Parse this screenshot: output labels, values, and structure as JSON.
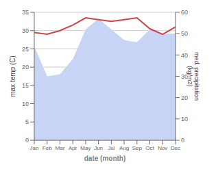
{
  "chart_data": {
    "type": "line",
    "categories": [
      "Jan",
      "Feb",
      "Mar",
      "Apr",
      "May",
      "Jun",
      "Jul",
      "Aug",
      "Sep",
      "Oct",
      "Nov",
      "Dec"
    ],
    "series": [
      {
        "type": "area",
        "axis": "y2",
        "color": "#c8d4f5",
        "values": [
          44,
          30,
          31,
          38,
          52,
          57,
          52,
          47,
          46,
          52,
          50,
          50
        ]
      },
      {
        "type": "line",
        "color": "#cc4444",
        "values": [
          29.5,
          29.0,
          30.0,
          31.5,
          33.5,
          33.0,
          32.5,
          33.0,
          33.5,
          30.5,
          29.0,
          31.0
        ]
      }
    ],
    "xlabel": "date (month)",
    "ylabel": "max temp (C)",
    "y2label": "med. precipitation\n(kg/m2)",
    "ylim": [
      0,
      35
    ],
    "yticks": [
      0,
      5,
      10,
      15,
      20,
      25,
      30,
      35
    ],
    "y2lim": [
      0,
      60
    ],
    "y2ticks": [
      0,
      10,
      20,
      30,
      40,
      50,
      60
    ],
    "grid": true
  }
}
